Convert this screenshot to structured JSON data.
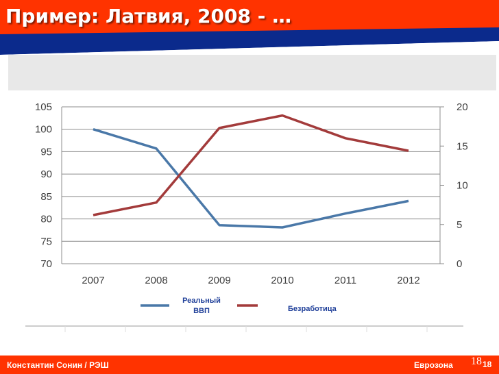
{
  "title": "Пример: Латвия, 2008 - …",
  "footer": {
    "left": "Константин Сонин / РЭШ",
    "right": "Еврозона",
    "slide_num": "18",
    "slide_num_bold": "18"
  },
  "colors": {
    "accent": "#ff3300",
    "navy": "#0b2a8c",
    "gdp": "#4a78a8",
    "unemployment": "#a33b3b"
  },
  "chart_data": {
    "type": "line",
    "categories": [
      "2007",
      "2008",
      "2009",
      "2010",
      "2011",
      "2012"
    ],
    "series": [
      {
        "name": "Реальный ВВП",
        "axis": "left",
        "values": [
          100,
          95.7,
          78.6,
          78.1,
          81.2,
          84
        ]
      },
      {
        "name": "Безработица",
        "axis": "right",
        "values": [
          6.2,
          7.8,
          17.3,
          18.9,
          16.0,
          14.4
        ]
      }
    ],
    "y_left": {
      "min": 70,
      "max": 105,
      "ticks": [
        70,
        75,
        80,
        85,
        90,
        95,
        100,
        105
      ]
    },
    "y_right": {
      "min": 0,
      "max": 20,
      "ticks": [
        0,
        5,
        10,
        15,
        20
      ]
    },
    "legend_position": "bottom",
    "grid": true
  }
}
